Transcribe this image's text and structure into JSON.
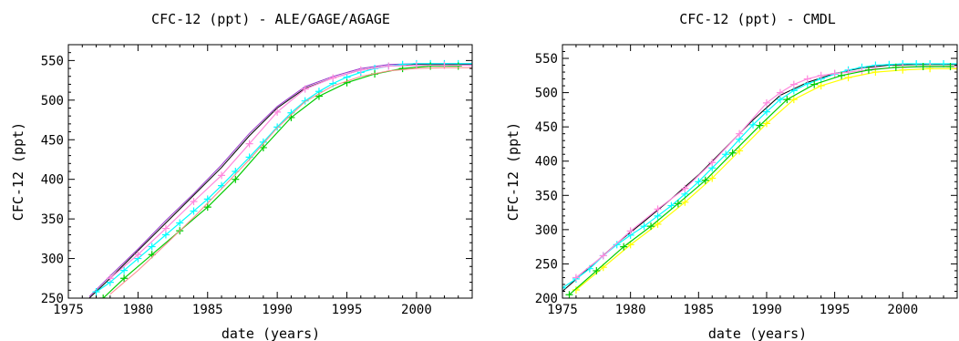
{
  "chart_data": [
    {
      "type": "line",
      "title": "CFC-12 (ppt) - ALE/GAGE/AGAGE",
      "xlabel": "date (years)",
      "ylabel": "CFC-12 (ppt)",
      "xlim": [
        1975,
        2004
      ],
      "ylim": [
        250,
        570
      ],
      "xticks": [
        1975,
        1980,
        1985,
        1990,
        1995,
        2000
      ],
      "yticks": [
        250,
        300,
        350,
        400,
        450,
        500,
        550
      ],
      "grid": false,
      "series": [
        {
          "color": "#000000",
          "marker": "line",
          "x": [
            1976.5,
            1978,
            1980,
            1982,
            1984,
            1986,
            1988,
            1990,
            1992,
            1994,
            1996,
            1998,
            2000,
            2002,
            2004
          ],
          "y": [
            250,
            275,
            310,
            345,
            380,
            415,
            455,
            490,
            515,
            528,
            538,
            543,
            545,
            545,
            545
          ]
        },
        {
          "color": "#9933cc",
          "marker": "line",
          "x": [
            1976.5,
            1978,
            1980,
            1982,
            1984,
            1986,
            1988,
            1990,
            1992,
            1994,
            1996,
            1998,
            2000,
            2002,
            2004
          ],
          "y": [
            252,
            278,
            312,
            348,
            382,
            418,
            458,
            492,
            517,
            530,
            540,
            545,
            546,
            546,
            546
          ]
        },
        {
          "color": "#00ffff",
          "marker": "plus",
          "x": [
            1977,
            1978,
            1979,
            1980,
            1981,
            1982,
            1983,
            1984,
            1985,
            1986,
            1987,
            1988,
            1989,
            1990,
            1991,
            1992,
            1993,
            1994,
            1995,
            1996,
            1997,
            1998,
            1999,
            2000,
            2001,
            2002,
            2003,
            2004
          ],
          "y": [
            258,
            270,
            285,
            300,
            315,
            330,
            345,
            360,
            375,
            392,
            410,
            428,
            447,
            466,
            484,
            499,
            511,
            521,
            529,
            535,
            540,
            543,
            545,
            546,
            546,
            546,
            546,
            546
          ]
        },
        {
          "color": "#00cc00",
          "marker": "plus",
          "x": [
            1977.5,
            1979,
            1981,
            1983,
            1985,
            1987,
            1989,
            1991,
            1993,
            1995,
            1997,
            1999,
            2001,
            2003
          ],
          "y": [
            250,
            275,
            305,
            335,
            365,
            400,
            440,
            478,
            505,
            522,
            533,
            540,
            543,
            543
          ]
        },
        {
          "color": "#ff88dd",
          "marker": "plus",
          "x": [
            1978,
            1980,
            1982,
            1984,
            1986,
            1988,
            1990,
            1992,
            1994,
            1996,
            1998,
            2000,
            2002,
            2004
          ],
          "y": [
            275,
            305,
            338,
            372,
            405,
            445,
            485,
            514,
            528,
            538,
            543,
            544,
            544,
            544
          ]
        },
        {
          "color": "#ff8888",
          "marker": "line",
          "x": [
            1978,
            1980,
            1982,
            1984,
            1986,
            1988,
            1990,
            1992,
            1994,
            1996,
            1998,
            2000,
            2002,
            2004
          ],
          "y": [
            255,
            285,
            318,
            352,
            388,
            425,
            465,
            498,
            518,
            530,
            537,
            540,
            541,
            541
          ]
        }
      ]
    },
    {
      "type": "line",
      "title": "CFC-12 (ppt) - CMDL",
      "xlabel": "date (years)",
      "ylabel": "CFC-12 (ppt)",
      "xlim": [
        1975,
        2004
      ],
      "ylim": [
        200,
        570
      ],
      "xticks": [
        1975,
        1980,
        1985,
        1990,
        1995,
        2000
      ],
      "yticks": [
        200,
        250,
        300,
        350,
        400,
        450,
        500,
        550
      ],
      "grid": false,
      "series": [
        {
          "color": "#000000",
          "marker": "line",
          "x": [
            1975,
            1977,
            1979,
            1981,
            1983,
            1985,
            1987,
            1989,
            1991,
            1993,
            1995,
            1997,
            1999,
            2001,
            2003,
            2004
          ],
          "y": [
            210,
            245,
            280,
            312,
            345,
            380,
            420,
            460,
            496,
            515,
            528,
            536,
            540,
            541,
            541,
            541
          ]
        },
        {
          "color": "#00ffff",
          "marker": "plus",
          "x": [
            1975,
            1976,
            1977,
            1978,
            1979,
            1980,
            1981,
            1982,
            1983,
            1984,
            1985,
            1986,
            1987,
            1988,
            1989,
            1990,
            1991,
            1992,
            1993,
            1994,
            1995,
            1996,
            1997,
            1998,
            1999,
            2000,
            2001,
            2002,
            2003,
            2004
          ],
          "y": [
            215,
            228,
            243,
            262,
            278,
            292,
            305,
            320,
            335,
            352,
            370,
            390,
            410,
            432,
            453,
            472,
            490,
            503,
            513,
            520,
            527,
            533,
            537,
            540,
            541,
            542,
            542,
            542,
            542,
            542
          ]
        },
        {
          "color": "#ff88dd",
          "marker": "plus",
          "x": [
            1976,
            1978,
            1980,
            1982,
            1984,
            1986,
            1988,
            1990,
            1991,
            1992,
            1993,
            1994,
            1995,
            1996,
            1997,
            1998,
            2000,
            2002,
            2004
          ],
          "y": [
            230,
            262,
            298,
            330,
            360,
            398,
            440,
            485,
            500,
            512,
            520,
            525,
            528,
            530,
            532,
            535,
            537,
            538,
            538
          ]
        },
        {
          "color": "#ffff00",
          "marker": "plus",
          "x": [
            1976,
            1978,
            1980,
            1982,
            1984,
            1986,
            1988,
            1990,
            1992,
            1994,
            1996,
            1998,
            2000,
            2002,
            2004
          ],
          "y": [
            212,
            245,
            278,
            308,
            340,
            375,
            415,
            455,
            490,
            510,
            522,
            530,
            533,
            535,
            535
          ]
        },
        {
          "color": "#00cc00",
          "marker": "plus",
          "x": [
            1975.5,
            1977.5,
            1979.5,
            1981.5,
            1983.5,
            1985.5,
            1987.5,
            1989.5,
            1991.5,
            1993.5,
            1995.5,
            1997.5,
            1999.5,
            2001.5,
            2003.5
          ],
          "y": [
            205,
            240,
            275,
            305,
            338,
            372,
            412,
            452,
            490,
            512,
            525,
            533,
            537,
            538,
            538
          ]
        }
      ]
    }
  ]
}
